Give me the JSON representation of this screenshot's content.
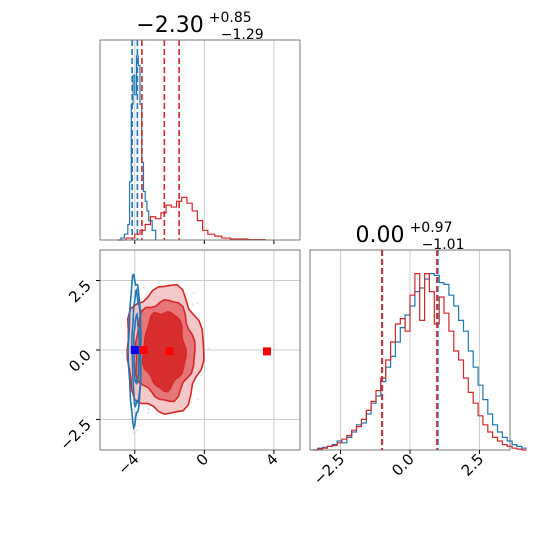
{
  "chart_data": [
    {
      "panel": "top-left histogram",
      "type": "histogram",
      "title": {
        "main": "−2.30",
        "sup": "+0.85",
        "sub": "−1.29"
      },
      "xlim": [
        -6,
        5.5
      ],
      "grid": true,
      "colors": {
        "blue": "#1f77b4",
        "red": "#d62728"
      },
      "series": [
        {
          "color": "blue",
          "style": "step",
          "bins_x": [
            -5.0,
            -4.8,
            -4.6,
            -4.4,
            -4.3,
            -4.2,
            -4.1,
            -4.0,
            -3.9,
            -3.8,
            -3.7,
            -3.6,
            -3.5,
            -3.4,
            -3.3,
            -3.2,
            -3.0,
            -2.8
          ],
          "heights": [
            0,
            0.01,
            0.03,
            0.08,
            0.3,
            0.7,
            0.85,
            0.75,
            0.95,
            0.9,
            0.7,
            0.4,
            0.25,
            0.2,
            0.15,
            0.1,
            0.05,
            0
          ],
          "quantile_lines": [
            -4.15,
            -3.85
          ]
        },
        {
          "color": "red",
          "style": "step",
          "bins_x": [
            -5.0,
            -4.5,
            -4.0,
            -3.7,
            -3.4,
            -3.1,
            -2.8,
            -2.5,
            -2.2,
            -1.9,
            -1.6,
            -1.3,
            -1.0,
            -0.7,
            -0.4,
            -0.1,
            0.2,
            0.6,
            1.0,
            1.5,
            2.5,
            3.5
          ],
          "heights": [
            0,
            0.01,
            0.03,
            0.05,
            0.08,
            0.12,
            0.11,
            0.14,
            0.18,
            0.17,
            0.2,
            0.22,
            0.19,
            0.15,
            0.1,
            0.05,
            0.03,
            0.02,
            0.01,
            0.005,
            0.002,
            0
          ],
          "quantile_lines": [
            -3.59,
            -2.3,
            -1.45
          ]
        }
      ]
    },
    {
      "panel": "bottom-left 2d contour",
      "type": "contour",
      "xlim": [
        -6,
        5.5
      ],
      "ylim": [
        -3.6,
        3.6
      ],
      "xticks": [
        "−4",
        "0",
        "4"
      ],
      "xtick_values": [
        -4,
        0,
        4
      ],
      "yticks": [
        "2.5",
        "0.0",
        "−2.5"
      ],
      "ytick_values": [
        2.5,
        0,
        -2.5
      ],
      "grid": true,
      "markers": [
        {
          "color": "blue",
          "x": -4.0,
          "y": 0.0
        },
        {
          "color": "red",
          "x": -2.0,
          "y": -0.05
        },
        {
          "color": "red",
          "x": 3.6,
          "y": -0.05
        },
        {
          "color": "red",
          "x": -3.5,
          "y": 0.0
        }
      ],
      "contours": [
        {
          "color": "red",
          "level": 0.39,
          "cx": -2.3,
          "cy": 0.0,
          "rx": 1.2,
          "ry": 1.4
        },
        {
          "color": "red",
          "level": 0.86,
          "cx": -2.3,
          "cy": 0.0,
          "rx": 1.7,
          "ry": 1.8
        },
        {
          "color": "red",
          "level": 0.99,
          "cx": -2.3,
          "cy": 0.0,
          "rx": 2.2,
          "ry": 2.3
        },
        {
          "color": "blue",
          "level": 0.39,
          "cx": -3.9,
          "cy": 0.0,
          "rx": 0.15,
          "ry": 1.2
        },
        {
          "color": "blue",
          "level": 0.86,
          "cx": -3.9,
          "cy": 0.0,
          "rx": 0.25,
          "ry": 2.0
        },
        {
          "color": "blue",
          "level": 0.99,
          "cx": -4.0,
          "cy": 0.0,
          "rx": 0.35,
          "ry": 2.6
        }
      ]
    },
    {
      "panel": "bottom-right histogram",
      "type": "histogram",
      "title": {
        "main": "0.00",
        "sup": "+0.97",
        "sub": "−1.01"
      },
      "xlim": [
        -3.6,
        3.6
      ],
      "xticks": [
        "−2.5",
        "0.0",
        "2.5"
      ],
      "xtick_values": [
        -2.5,
        0,
        2.5
      ],
      "grid": true,
      "series": [
        {
          "color": "blue",
          "style": "step",
          "bin_start": -3.5,
          "bin_width": 0.175,
          "heights": [
            0.0,
            0.01,
            0.015,
            0.02,
            0.03,
            0.05,
            0.04,
            0.07,
            0.1,
            0.14,
            0.15,
            0.2,
            0.26,
            0.3,
            0.38,
            0.46,
            0.52,
            0.6,
            0.68,
            0.75,
            0.8,
            0.88,
            0.9,
            0.95,
            0.98,
            0.97,
            0.93,
            0.92,
            0.86,
            0.8,
            0.72,
            0.66,
            0.55,
            0.46,
            0.36,
            0.28,
            0.2,
            0.14,
            0.1,
            0.07,
            0.05,
            0.03,
            0.02,
            0.01
          ],
          "quantile_lines": [
            -1.0,
            1.0
          ]
        },
        {
          "color": "red",
          "style": "step",
          "bin_start": -3.5,
          "bin_width": 0.175,
          "heights": [
            0.0,
            0.005,
            0.01,
            0.02,
            0.025,
            0.04,
            0.06,
            0.08,
            0.11,
            0.13,
            0.17,
            0.22,
            0.27,
            0.33,
            0.4,
            0.5,
            0.6,
            0.7,
            0.73,
            0.66,
            0.86,
            0.98,
            0.72,
            0.98,
            0.88,
            0.7,
            0.85,
            0.76,
            0.66,
            0.55,
            0.5,
            0.4,
            0.32,
            0.26,
            0.19,
            0.14,
            0.1,
            0.07,
            0.05,
            0.03,
            0.02,
            0.01,
            0.005,
            0.0
          ],
          "quantile_lines": [
            -1.01,
            0.97
          ]
        }
      ]
    }
  ]
}
